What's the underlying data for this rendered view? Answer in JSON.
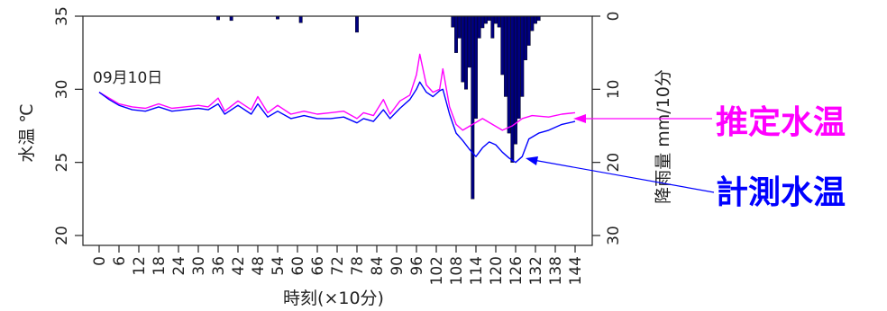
{
  "chart_data": {
    "type": "line",
    "date_label": "09月10日",
    "xlabel": "時刻(×10分)",
    "ylabel_left": "水温 ℃",
    "ylabel_right": "降雨量 mm/10分",
    "x_ticks": [
      "0",
      "6",
      "12",
      "18",
      "24",
      "30",
      "36",
      "42",
      "48",
      "54",
      "60",
      "66",
      "72",
      "78",
      "84",
      "90",
      "96",
      "102",
      "108",
      "114",
      "120",
      "126",
      "132",
      "138",
      "144"
    ],
    "y_left_ticks": [
      20,
      25,
      30,
      35
    ],
    "y_left_range": [
      20,
      35
    ],
    "y_right_ticks": [
      0,
      10,
      20,
      30
    ],
    "y_right_range": [
      0,
      30
    ],
    "x_range": [
      0,
      144
    ],
    "colors": {
      "estimated": "#ff00ff",
      "measured": "#0000ff",
      "rain": "#000080",
      "label_estimated": "#ff00ff",
      "label_measured": "#0000ff"
    },
    "series": [
      {
        "name": "推定水温",
        "x": [
          0,
          3,
          6,
          10,
          14,
          18,
          22,
          26,
          30,
          33,
          36,
          38,
          42,
          46,
          48,
          51,
          54,
          58,
          62,
          66,
          70,
          74,
          78,
          80,
          83,
          86,
          88,
          91,
          94,
          96,
          97,
          99,
          101,
          103,
          104,
          106,
          108,
          110,
          113,
          116,
          119,
          122,
          125,
          128,
          131,
          136,
          140,
          144
        ],
        "values": [
          29.8,
          29.4,
          29.0,
          28.8,
          28.7,
          29.0,
          28.7,
          28.8,
          28.9,
          28.8,
          29.4,
          28.5,
          29.2,
          28.6,
          29.5,
          28.4,
          28.9,
          28.3,
          28.5,
          28.3,
          28.4,
          28.5,
          28.0,
          28.4,
          28.2,
          29.3,
          28.3,
          29.2,
          29.6,
          31.0,
          32.4,
          30.3,
          29.8,
          30.0,
          31.4,
          28.8,
          27.6,
          27.2,
          27.6,
          28.0,
          27.6,
          27.2,
          27.5,
          28.0,
          28.2,
          28.1,
          28.3,
          28.4
        ]
      },
      {
        "name": "計測水温",
        "x": [
          0,
          3,
          6,
          10,
          14,
          18,
          22,
          26,
          30,
          33,
          36,
          38,
          42,
          46,
          48,
          51,
          54,
          58,
          62,
          66,
          70,
          74,
          78,
          80,
          83,
          86,
          88,
          91,
          94,
          96,
          97,
          99,
          101,
          103,
          104,
          106,
          108,
          110,
          112,
          114,
          116,
          118,
          120,
          122,
          124,
          126,
          128,
          130,
          133,
          136,
          140,
          144
        ],
        "values": [
          29.8,
          29.3,
          28.9,
          28.6,
          28.5,
          28.8,
          28.5,
          28.6,
          28.7,
          28.6,
          29.0,
          28.3,
          28.9,
          28.3,
          29.0,
          28.1,
          28.5,
          28.0,
          28.2,
          28.0,
          28.0,
          28.1,
          27.7,
          28.0,
          27.8,
          28.6,
          28.0,
          28.7,
          29.3,
          30.0,
          30.5,
          29.8,
          29.5,
          29.9,
          30.0,
          28.3,
          27.0,
          26.5,
          25.9,
          25.4,
          26.0,
          26.4,
          26.2,
          25.7,
          25.3,
          25.0,
          25.4,
          26.6,
          27.0,
          27.2,
          27.6,
          27.8
        ]
      }
    ],
    "rain": {
      "name": "降雨量",
      "x": [
        36,
        40,
        54,
        61,
        78,
        107,
        108,
        109,
        110,
        111,
        112,
        113,
        114,
        115,
        116,
        117,
        118,
        119,
        120,
        121,
        122,
        123,
        124,
        125,
        126,
        127,
        128,
        129,
        130,
        131,
        132,
        133
      ],
      "values": [
        0.5,
        0.6,
        0.4,
        0.9,
        2.2,
        1.5,
        5.0,
        3.0,
        9.0,
        10.0,
        7.0,
        25.0,
        14.0,
        3.0,
        1.6,
        1.0,
        0.6,
        3.0,
        1.0,
        1.5,
        8.0,
        11.0,
        16.0,
        20.0,
        17.5,
        14.0,
        11.0,
        6.0,
        4.0,
        2.0,
        1.0,
        0.6
      ]
    },
    "label_estimated": "推定水温",
    "label_measured": "計測水温"
  }
}
